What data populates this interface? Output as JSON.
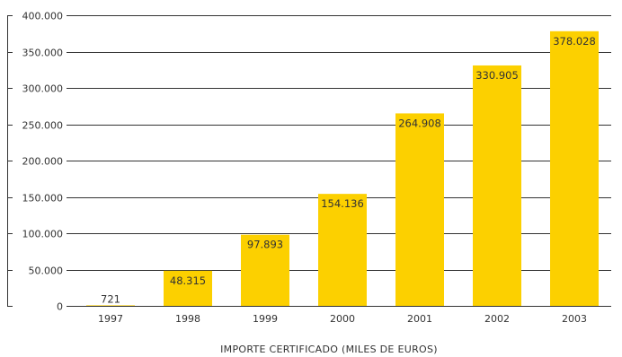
{
  "colors": {
    "bar": "#FCD000",
    "grid": "#333333",
    "text": "#333333"
  },
  "chart_data": {
    "type": "bar",
    "categories": [
      "1997",
      "1998",
      "1999",
      "2000",
      "2001",
      "2002",
      "2003"
    ],
    "values": [
      721,
      48315,
      97893,
      154136,
      264908,
      330905,
      378028
    ],
    "value_labels": [
      "721",
      "48.315",
      "97.893",
      "154.136",
      "264.908",
      "330.905",
      "378.028"
    ],
    "title": "",
    "xlabel": "IMPORTE CERTIFICADO (MILES DE EUROS)",
    "ylabel": "",
    "ylim": [
      0,
      400000
    ],
    "yticks": [
      0,
      50000,
      100000,
      150000,
      200000,
      250000,
      300000,
      350000,
      400000
    ],
    "ytick_labels": [
      "0",
      "50.000",
      "100.000",
      "150.000",
      "200.000",
      "250.000",
      "300.000",
      "350.000",
      "400.000"
    ],
    "grid": true,
    "legend": "none"
  }
}
